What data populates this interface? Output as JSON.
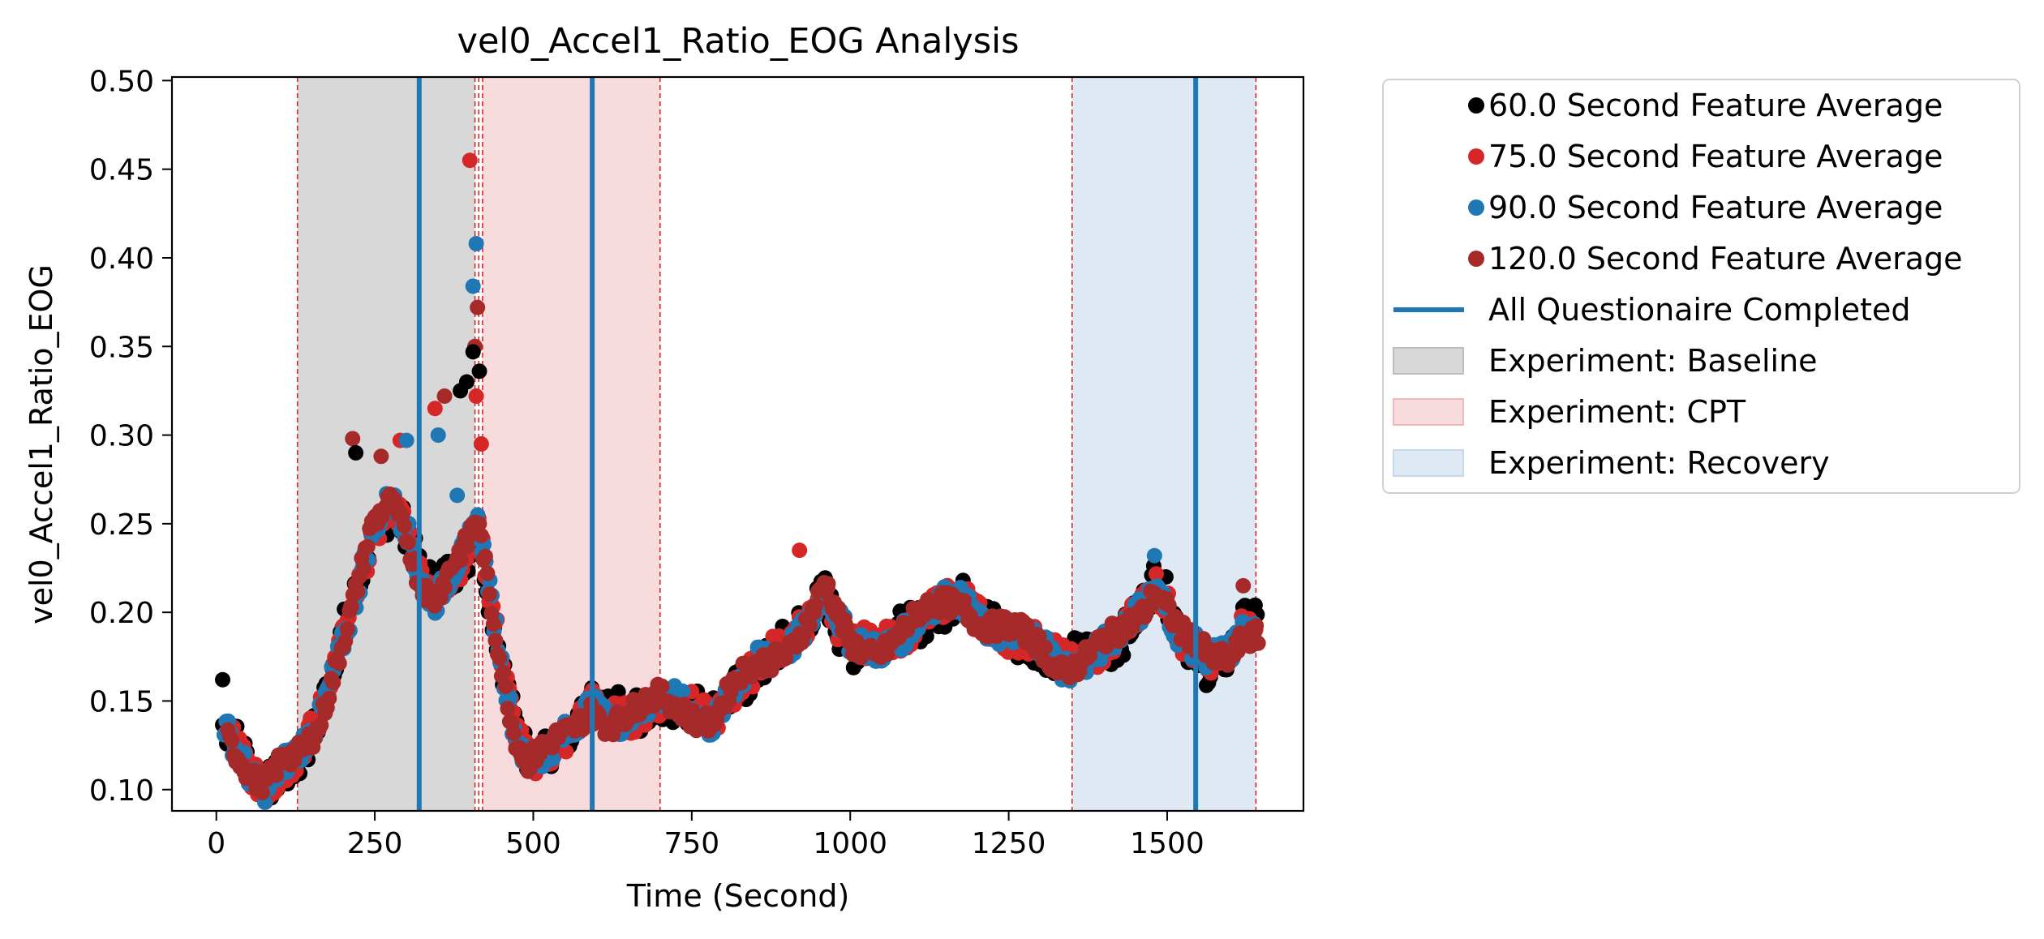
{
  "chart_data": {
    "type": "scatter",
    "title": "vel0_Accel1_Ratio_EOG Analysis",
    "xlabel": "Time (Second)",
    "ylabel": "vel0_Accel1_Ratio_EOG",
    "xlim": [
      -70,
      1715
    ],
    "ylim": [
      0.088,
      0.502
    ],
    "xticks": [
      0,
      250,
      500,
      750,
      1000,
      1250,
      1500
    ],
    "xtick_labels": [
      "0",
      "250",
      "500",
      "750",
      "1000",
      "1250",
      "1500"
    ],
    "yticks": [
      0.1,
      0.15,
      0.2,
      0.25,
      0.3,
      0.35,
      0.4,
      0.45,
      0.5
    ],
    "ytick_labels": [
      "0.10",
      "0.15",
      "0.20",
      "0.25",
      "0.30",
      "0.35",
      "0.40",
      "0.45",
      "0.50"
    ],
    "grid": false,
    "legend_position": "outside upper right",
    "regions": [
      {
        "name": "Experiment: Baseline",
        "x": [
          128,
          408
        ],
        "fill": "#d8d8d8",
        "edge": "#bdbdbd"
      },
      {
        "name": "Experiment: CPT",
        "x": [
          420,
          700
        ],
        "fill": "#f8dcdd",
        "edge": "#f2b8bb"
      },
      {
        "name": "Experiment: Recovery",
        "x": [
          1350,
          1640
        ],
        "fill": "#dfe9f3",
        "edge": "#c5d8ec"
      }
    ],
    "region_edges": [
      128,
      408,
      414,
      420,
      700,
      1350,
      1640
    ],
    "region_edge_color": "#d62728",
    "questionnaire_lines": {
      "name": "All Questionaire Completed",
      "x": [
        320,
        593,
        1545
      ],
      "color": "#1f77b4"
    },
    "series": [
      {
        "name": "60.0 Second Feature Average",
        "color": "#000000"
      },
      {
        "name": "75.0 Second Feature Average",
        "color": "#d62728"
      },
      {
        "name": "90.0 Second Feature Average",
        "color": "#1f77b4"
      },
      {
        "name": "120.0 Second Feature Average",
        "color": "#a62a2a"
      }
    ],
    "trend_x": [
      10,
      35,
      60,
      80,
      100,
      130,
      160,
      190,
      215,
      245,
      275,
      300,
      320,
      345,
      370,
      395,
      410,
      420,
      430,
      450,
      470,
      490,
      510,
      530,
      560,
      590,
      620,
      660,
      700,
      740,
      780,
      820,
      860,
      900,
      940,
      960,
      980,
      1000,
      1040,
      1080,
      1120,
      1160,
      1180,
      1210,
      1250,
      1300,
      1330,
      1360,
      1390,
      1420,
      1460,
      1480,
      1500,
      1520,
      1545,
      1570,
      1600,
      1620,
      1645
    ],
    "trend_y": [
      0.135,
      0.122,
      0.108,
      0.103,
      0.112,
      0.118,
      0.135,
      0.175,
      0.205,
      0.245,
      0.26,
      0.245,
      0.22,
      0.21,
      0.225,
      0.235,
      0.25,
      0.235,
      0.21,
      0.17,
      0.135,
      0.118,
      0.122,
      0.125,
      0.13,
      0.145,
      0.14,
      0.145,
      0.15,
      0.145,
      0.14,
      0.16,
      0.17,
      0.18,
      0.2,
      0.215,
      0.195,
      0.18,
      0.178,
      0.19,
      0.2,
      0.205,
      0.205,
      0.195,
      0.19,
      0.18,
      0.17,
      0.173,
      0.18,
      0.185,
      0.2,
      0.215,
      0.205,
      0.19,
      0.18,
      0.17,
      0.175,
      0.19,
      0.19
    ],
    "spikes": [
      {
        "x": 395,
        "y": 0.33
      },
      {
        "x": 400,
        "y": 0.455
      },
      {
        "x": 410,
        "y": 0.408
      },
      {
        "x": 412,
        "y": 0.372
      },
      {
        "x": 415,
        "y": 0.336
      },
      {
        "x": 418,
        "y": 0.295
      },
      {
        "x": 405,
        "y": 0.384
      },
      {
        "x": 408,
        "y": 0.35
      },
      {
        "x": 385,
        "y": 0.325
      },
      {
        "x": 345,
        "y": 0.315
      },
      {
        "x": 350,
        "y": 0.3
      },
      {
        "x": 360,
        "y": 0.322
      },
      {
        "x": 405,
        "y": 0.347
      },
      {
        "x": 410,
        "y": 0.322
      },
      {
        "x": 380,
        "y": 0.266
      },
      {
        "x": 215,
        "y": 0.298
      },
      {
        "x": 220,
        "y": 0.29
      },
      {
        "x": 290,
        "y": 0.297
      },
      {
        "x": 300,
        "y": 0.297
      },
      {
        "x": 260,
        "y": 0.288
      },
      {
        "x": 10,
        "y": 0.162
      },
      {
        "x": 920,
        "y": 0.235
      },
      {
        "x": 1480,
        "y": 0.232
      },
      {
        "x": 1620,
        "y": 0.215
      }
    ],
    "legend": {
      "series_labels": [
        "60.0 Second Feature Average",
        "75.0 Second Feature Average",
        "90.0 Second Feature Average",
        "120.0 Second Feature Average"
      ],
      "line_label": "All Questionaire Completed",
      "region_labels": [
        "Experiment: Baseline",
        "Experiment: CPT",
        "Experiment: Recovery"
      ]
    }
  }
}
